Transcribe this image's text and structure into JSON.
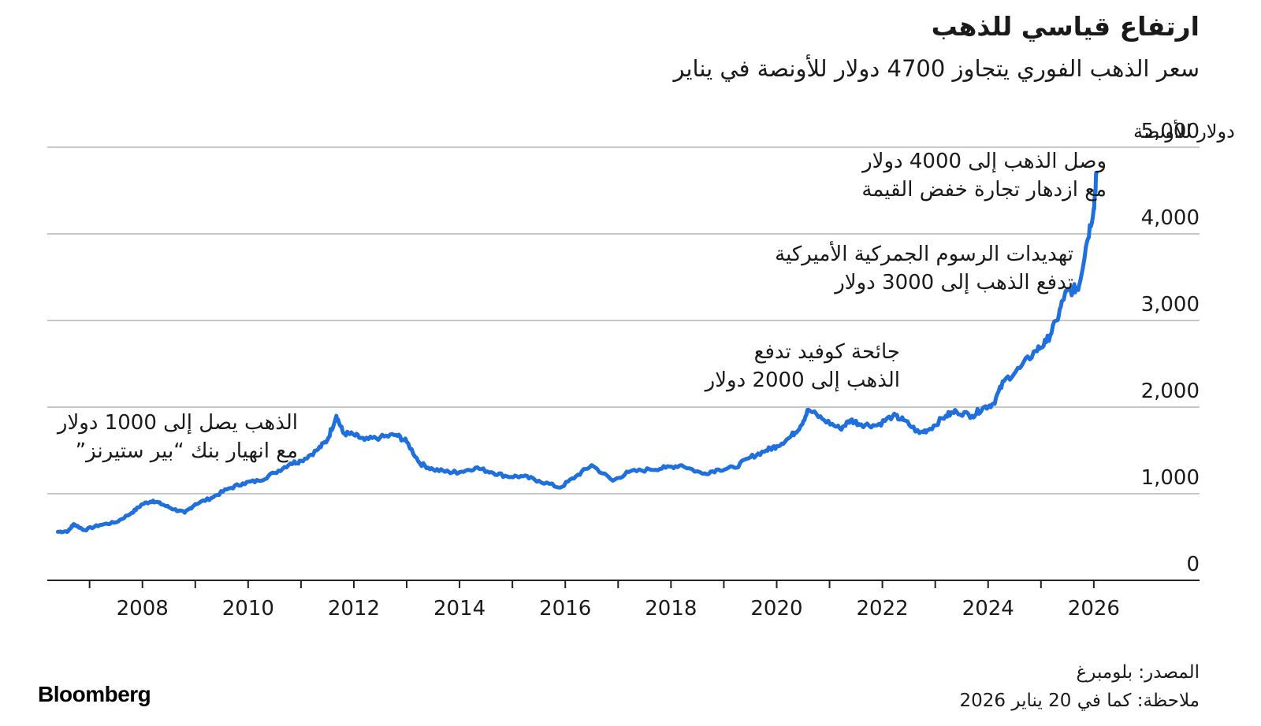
{
  "title": "ارتفاع قياسي للذهب",
  "subtitle": "سعر الذهب الفوري يتجاوز 4700 دولار للأونصة في يناير",
  "source": {
    "line1": "المصدر: بلومبرغ",
    "line2": "ملاحظة: كما في 20 يناير 2026"
  },
  "logo": "Bloomberg",
  "colors": {
    "line": "#1f6fdc",
    "grid": "#c8c8c8",
    "axis": "#222222",
    "text": "#1a1a1a"
  },
  "chart_data": {
    "type": "line",
    "title": "ارتفاع قياسي للذهب",
    "ylabel": "دولار للأونصة",
    "xlabel": "",
    "ylim": [
      0,
      5000
    ],
    "xlim": [
      2006.2,
      2028.0
    ],
    "y_ticks": [
      0,
      1000,
      2000,
      3000,
      4000,
      5000
    ],
    "y_tick_labels": [
      "0",
      "1,000",
      "2,000",
      "3,000",
      "4,000",
      "5,000"
    ],
    "x_tick_labels": [
      "2008",
      "2010",
      "2012",
      "2014",
      "2016",
      "2018",
      "2020",
      "2022",
      "2024",
      "2026"
    ],
    "x_tick_values": [
      2008,
      2010,
      2012,
      2014,
      2016,
      2018,
      2020,
      2022,
      2024,
      2026
    ],
    "grid": true,
    "series": [
      {
        "name": "سعر الذهب الفوري",
        "x": [
          2006.4,
          2006.6,
          2006.7,
          2006.9,
          2007.2,
          2007.5,
          2007.8,
          2008.0,
          2008.2,
          2008.4,
          2008.6,
          2008.8,
          2009.0,
          2009.3,
          2009.6,
          2009.9,
          2010.2,
          2010.5,
          2010.8,
          2011.0,
          2011.3,
          2011.5,
          2011.67,
          2011.8,
          2012.0,
          2012.2,
          2012.5,
          2012.8,
          2013.0,
          2013.25,
          2013.5,
          2013.8,
          2014.0,
          2014.3,
          2014.6,
          2014.9,
          2015.2,
          2015.5,
          2015.9,
          2016.2,
          2016.5,
          2016.9,
          2017.2,
          2017.6,
          2017.9,
          2018.2,
          2018.6,
          2018.9,
          2019.2,
          2019.5,
          2019.8,
          2020.0,
          2020.25,
          2020.45,
          2020.6,
          2020.9,
          2021.2,
          2021.4,
          2021.6,
          2021.9,
          2022.2,
          2022.4,
          2022.7,
          2022.9,
          2023.2,
          2023.4,
          2023.7,
          2023.9,
          2024.1,
          2024.3,
          2024.6,
          2024.9,
          2025.1,
          2025.3,
          2025.45,
          2025.6,
          2025.72,
          2025.85,
          2026.0,
          2026.05
        ],
        "values": [
          560,
          570,
          650,
          580,
          640,
          670,
          780,
          880,
          920,
          870,
          820,
          780,
          880,
          950,
          1050,
          1120,
          1150,
          1240,
          1350,
          1380,
          1500,
          1620,
          1900,
          1700,
          1680,
          1620,
          1650,
          1680,
          1600,
          1350,
          1280,
          1250,
          1250,
          1300,
          1250,
          1200,
          1200,
          1150,
          1070,
          1200,
          1330,
          1150,
          1250,
          1280,
          1300,
          1330,
          1230,
          1280,
          1300,
          1420,
          1500,
          1550,
          1650,
          1780,
          1970,
          1850,
          1750,
          1850,
          1800,
          1790,
          1900,
          1850,
          1700,
          1750,
          1900,
          1950,
          1900,
          1990,
          2040,
          2300,
          2450,
          2650,
          2750,
          3000,
          3300,
          3350,
          3400,
          3850,
          4300,
          4700
        ]
      }
    ],
    "annotations": [
      {
        "label": "ann-1000",
        "lines": [
          "الذهب يصل إلى 1000 دولار",
          "مع انهيار بنك “بير ستيرنز”"
        ],
        "x": 2008.2,
        "y": 1000
      },
      {
        "label": "ann-2000",
        "lines": [
          "جائحة كوفيد تدفع",
          "الذهب إلى 2000 دولار"
        ],
        "x": 2020.6,
        "y": 2000
      },
      {
        "label": "ann-3000",
        "lines": [
          "تهديدات الرسوم الجمركية الأميركية",
          "تدفع الذهب إلى 3000 دولار"
        ],
        "x": 2025.2,
        "y": 3000
      },
      {
        "label": "ann-4000",
        "lines": [
          "وصل الذهب إلى 4000 دولار",
          "مع ازدهار تجارة خفض القيمة"
        ],
        "x": 2025.7,
        "y": 4000
      }
    ]
  }
}
